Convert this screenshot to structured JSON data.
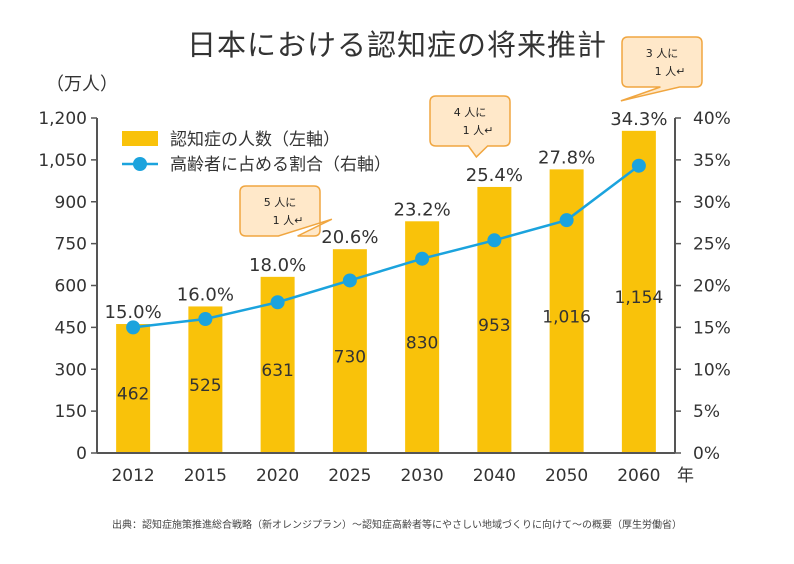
{
  "title": "日本における認知症の将来推計",
  "left_unit": "（万人）",
  "source": "出典：認知症施策推進総合戦略（新オレンジプラン）～認知症高齢者等にやさしい地域づくりに向けて～の概要（厚生労働省）",
  "colors": {
    "bar": "#F9C20A",
    "line": "#1BA3DD",
    "axis": "#555555",
    "callout_fill": "#FFE8C9",
    "callout_stroke": "#F0A640"
  },
  "chart_data": {
    "type": "bar",
    "categories": [
      "2012",
      "2015",
      "2020",
      "2025",
      "2030",
      "2040",
      "2050",
      "2060"
    ],
    "x_unit": "年",
    "series": [
      {
        "name": "認知症の人数（左軸）",
        "type": "bar",
        "axis": "left",
        "values": [
          462,
          525,
          631,
          730,
          830,
          953,
          1016,
          1154
        ],
        "labels": [
          "462",
          "525",
          "631",
          "730",
          "830",
          "953",
          "1,016",
          "1,154"
        ]
      },
      {
        "name": "高齢者に占める割合（右軸）",
        "type": "line",
        "axis": "right",
        "values": [
          15.0,
          16.0,
          18.0,
          20.6,
          23.2,
          25.4,
          27.8,
          34.3
        ],
        "labels": [
          "15.0%",
          "16.0%",
          "18.0%",
          "20.6%",
          "23.2%",
          "25.4%",
          "27.8%",
          "34.3%"
        ]
      }
    ],
    "y_left": {
      "range": [
        0,
        1200
      ],
      "ticks": [
        "0",
        "150",
        "300",
        "450",
        "600",
        "750",
        "900",
        "1,050",
        "1,200"
      ]
    },
    "y_right": {
      "range": [
        0,
        40
      ],
      "ticks": [
        "0%",
        "5%",
        "10%",
        "15%",
        "20%",
        "25%",
        "30%",
        "35%",
        "40%"
      ]
    },
    "legend_placement": "top-left",
    "grid": false,
    "annotations": [
      {
        "category": "2025",
        "lines": [
          "5 人に",
          "1 人↵"
        ]
      },
      {
        "category": "2040",
        "lines": [
          "4 人に",
          "1 人↵"
        ]
      },
      {
        "category": "2060",
        "lines": [
          "3 人に",
          "1 人↵"
        ]
      }
    ]
  }
}
